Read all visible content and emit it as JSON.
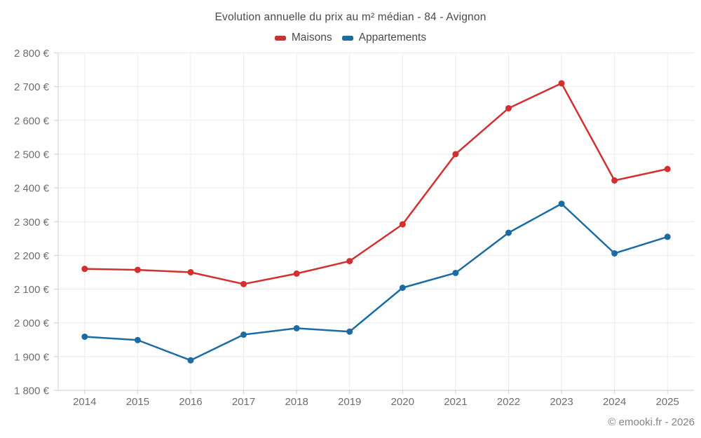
{
  "chart_data": {
    "type": "line",
    "title": "Evolution annuelle du prix au m² médian - 84 - Avignon",
    "x": [
      "2014",
      "2015",
      "2016",
      "2017",
      "2018",
      "2019",
      "2020",
      "2021",
      "2022",
      "2023",
      "2024",
      "2025"
    ],
    "series": [
      {
        "name": "Maisons",
        "color": "#d42f2f",
        "values": [
          2160,
          2157,
          2150,
          2115,
          2146,
          2183,
          2292,
          2500,
          2636,
          2710,
          2422,
          2456
        ]
      },
      {
        "name": "Appartements",
        "color": "#1b6ca5",
        "values": [
          1959,
          1949,
          1889,
          1965,
          1984,
          1974,
          2104,
          2148,
          2267,
          2353,
          2206,
          2255
        ]
      }
    ],
    "ylim": [
      1800,
      2800
    ],
    "ytick_step": 100,
    "ytick_suffix": " €",
    "xlabel": "",
    "ylabel": "",
    "grid": true,
    "legend_position": "top"
  },
  "footer": {
    "copyright": "© emooki.fr - 2026"
  }
}
